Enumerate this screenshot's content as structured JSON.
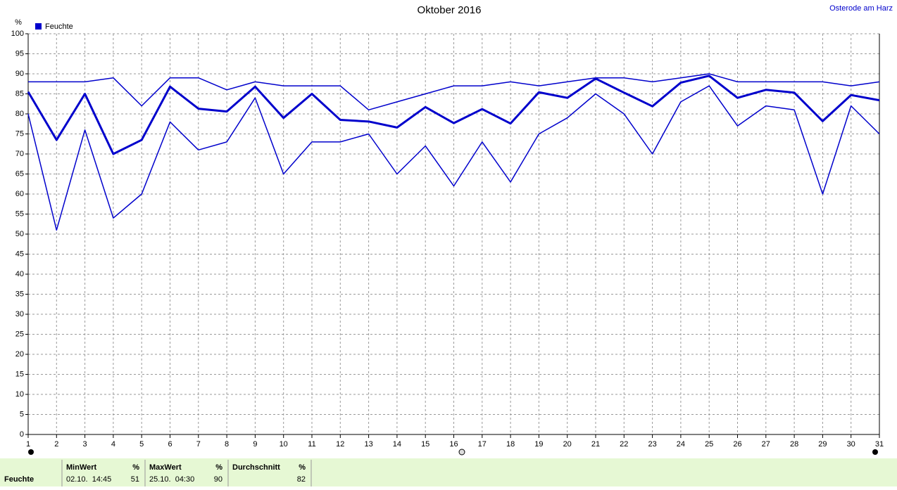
{
  "chart_data": {
    "type": "line",
    "title": "Oktober 2016",
    "location": "Osterode am Harz",
    "y_unit": "%",
    "legend": "Feuchte",
    "x": [
      1,
      2,
      3,
      4,
      5,
      6,
      7,
      8,
      9,
      10,
      11,
      12,
      13,
      14,
      15,
      16,
      17,
      18,
      19,
      20,
      21,
      22,
      23,
      24,
      25,
      26,
      27,
      28,
      29,
      30,
      31
    ],
    "series": [
      {
        "color": "#0000cc",
        "width": 1.5,
        "values": [
          88,
          88,
          88,
          89,
          82,
          89,
          89,
          86,
          88,
          87,
          87,
          87,
          81,
          83,
          85,
          87,
          87,
          88,
          87,
          88,
          89,
          89,
          88,
          89,
          90,
          88,
          88,
          88,
          88,
          87,
          88
        ]
      },
      {
        "color": "#0000cc",
        "width": 3,
        "values": [
          85.5,
          73.5,
          85,
          70,
          73.5,
          86.8,
          81.3,
          80.6,
          86.8,
          79,
          85,
          78.5,
          78.1,
          76.6,
          81.7,
          77.7,
          81.2,
          77.6,
          85.4,
          84,
          88.8,
          85.3,
          81.9,
          87.8,
          89.5,
          84,
          86,
          85.3,
          78.2,
          84.7,
          83.4
        ]
      },
      {
        "color": "#0000cc",
        "width": 1.5,
        "values": [
          80,
          51,
          76,
          54,
          60,
          78,
          71,
          73,
          84,
          65,
          73,
          73,
          75,
          65,
          72,
          62,
          73,
          63,
          75,
          79,
          85,
          80,
          70,
          83,
          87,
          77,
          82,
          81,
          60,
          82,
          75
        ]
      }
    ],
    "xlim": [
      1,
      31
    ],
    "xticks": [
      1,
      2,
      3,
      4,
      5,
      6,
      7,
      8,
      9,
      10,
      11,
      12,
      13,
      14,
      15,
      16,
      17,
      18,
      19,
      20,
      21,
      22,
      23,
      24,
      25,
      26,
      27,
      28,
      29,
      30,
      31
    ],
    "ylim": [
      0,
      100
    ],
    "yticks": [
      0,
      5,
      10,
      15,
      20,
      25,
      30,
      35,
      40,
      45,
      50,
      55,
      60,
      65,
      70,
      75,
      80,
      85,
      90,
      95,
      100
    ],
    "grid": true
  },
  "footer": {
    "row_label": "Feuchte",
    "columns": [
      {
        "header": "MinWert",
        "unit": "%",
        "time": "02.10.  14:45",
        "value": "51"
      },
      {
        "header": "MaxWert",
        "unit": "%",
        "time": "25.10.  04:30",
        "value": "90"
      },
      {
        "header": "Durchschnitt",
        "unit": "%",
        "time": "",
        "value": "82"
      }
    ]
  }
}
